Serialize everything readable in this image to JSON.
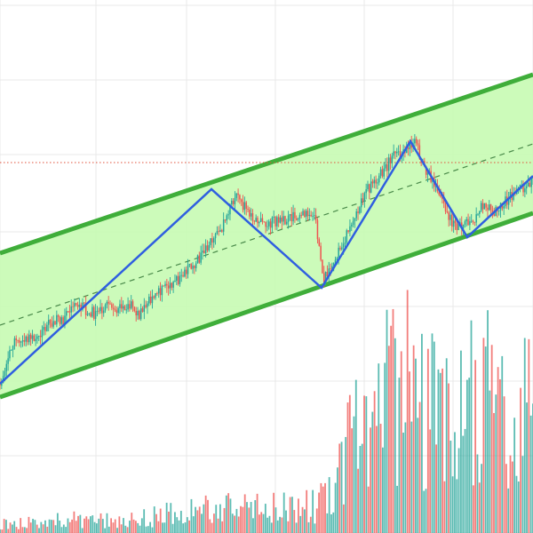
{
  "chart_data": {
    "type": "candlestick",
    "x_domain": [
      0,
      150
    ],
    "y_domain": [
      0,
      100
    ],
    "grid": true,
    "grid_x_values": [
      0,
      27,
      52.5,
      77.5,
      102.5,
      127.5,
      150
    ],
    "grid_y_values": [
      0,
      14.5,
      28.5,
      42.5,
      56.5,
      71,
      85,
      99
    ],
    "colors": {
      "up": "#26a69a",
      "down": "#ef5350",
      "channel_line": "#3fae3a",
      "channel_fill": "#c6fbb2",
      "zigzag": "#2f5fe0",
      "midline": "#4a8a4a",
      "price_line": "#e0503a",
      "grid": "#e8e8e8"
    },
    "channel": {
      "upper": [
        [
          0,
          52.5
        ],
        [
          150,
          86
        ]
      ],
      "lower": [
        [
          0,
          25.5
        ],
        [
          150,
          60
        ]
      ],
      "mid": [
        [
          0,
          39
        ],
        [
          150,
          73
        ]
      ]
    },
    "price_line_value": 69.5,
    "zigzag": [
      [
        0,
        28
      ],
      [
        59.5,
        64.5
      ],
      [
        90.5,
        46
      ],
      [
        115.5,
        73.5
      ],
      [
        131.5,
        55.5
      ],
      [
        150,
        67
      ]
    ],
    "price_series": [
      [
        0,
        28
      ],
      [
        3,
        35
      ],
      [
        6,
        36.5
      ],
      [
        9,
        36
      ],
      [
        12,
        37.5
      ],
      [
        15,
        40
      ],
      [
        18,
        40
      ],
      [
        21,
        44
      ],
      [
        24,
        42
      ],
      [
        27,
        41
      ],
      [
        30,
        43
      ],
      [
        33,
        42
      ],
      [
        36,
        43
      ],
      [
        39,
        41
      ],
      [
        42,
        44
      ],
      [
        45,
        45
      ],
      [
        48,
        47
      ],
      [
        51,
        48
      ],
      [
        54,
        50
      ],
      [
        57,
        52
      ],
      [
        60,
        55
      ],
      [
        63,
        58
      ],
      [
        66,
        63
      ],
      [
        69,
        61
      ],
      [
        72,
        59
      ],
      [
        75,
        58
      ],
      [
        78,
        58.5
      ],
      [
        81,
        59
      ],
      [
        84,
        60
      ],
      [
        87,
        60
      ],
      [
        89,
        58
      ],
      [
        91,
        47
      ],
      [
        93,
        50
      ],
      [
        96,
        54
      ],
      [
        99,
        58
      ],
      [
        102,
        63
      ],
      [
        105,
        66
      ],
      [
        108,
        68
      ],
      [
        111,
        71
      ],
      [
        114,
        72
      ],
      [
        117,
        73
      ],
      [
        120,
        68
      ],
      [
        123,
        65
      ],
      [
        126,
        60
      ],
      [
        128,
        57
      ],
      [
        130,
        58
      ],
      [
        133,
        58
      ],
      [
        136,
        62
      ],
      [
        139,
        60
      ],
      [
        142,
        62
      ],
      [
        145,
        64
      ],
      [
        148,
        65
      ],
      [
        150,
        66
      ]
    ],
    "volume_series": [
      [
        0,
        2
      ],
      [
        10,
        2.5
      ],
      [
        20,
        3
      ],
      [
        30,
        3
      ],
      [
        40,
        4
      ],
      [
        50,
        4.5
      ],
      [
        60,
        5.5
      ],
      [
        70,
        6
      ],
      [
        80,
        6
      ],
      [
        90,
        7
      ],
      [
        95,
        14
      ],
      [
        100,
        24
      ],
      [
        105,
        29
      ],
      [
        110,
        32
      ],
      [
        115,
        34
      ],
      [
        120,
        31
      ],
      [
        125,
        30
      ],
      [
        130,
        30
      ],
      [
        135,
        33
      ],
      [
        140,
        34
      ],
      [
        145,
        30
      ],
      [
        150,
        32
      ]
    ]
  }
}
